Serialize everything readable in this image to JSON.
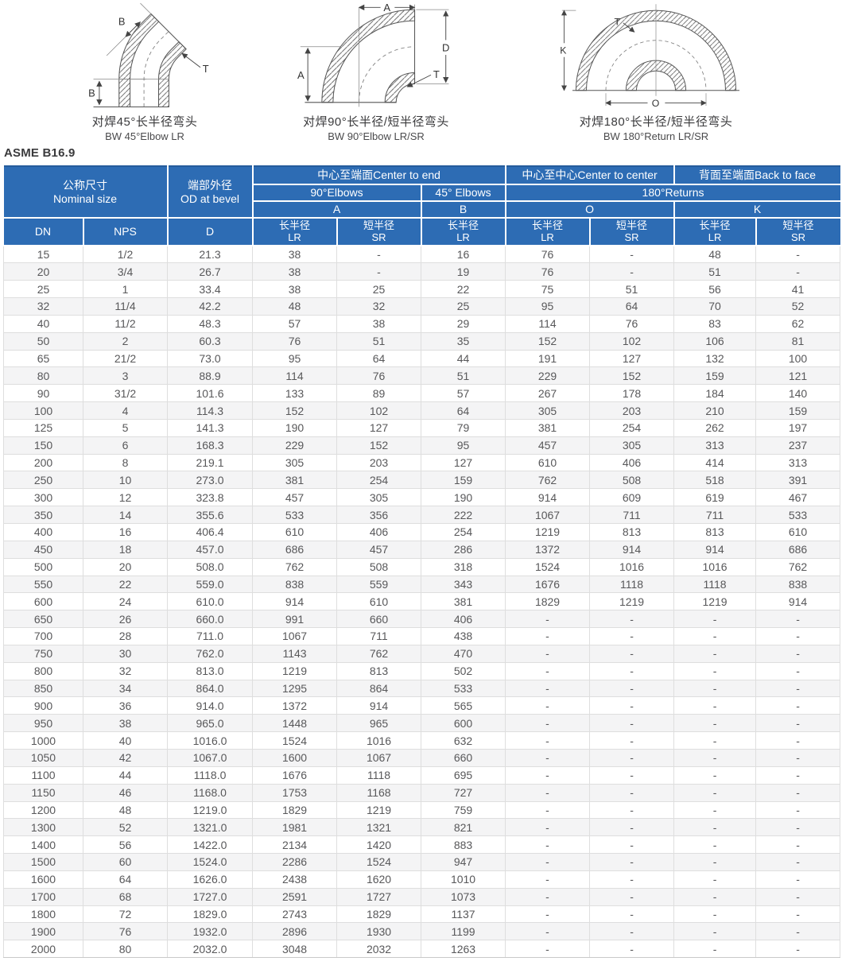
{
  "page": {
    "standard_label": "ASME B16.9"
  },
  "colors": {
    "header_blue": "#2d6cb4",
    "header_blue_dark": "#255c9c",
    "row_alt": "#f4f4f5",
    "grid_line": "#dedede",
    "cell_text": "#58585a"
  },
  "diagrams": [
    {
      "caption_cn": "对焊45°长半径弯头",
      "caption_en": "BW 45°Elbow LR",
      "labels": {
        "b_axial": "B",
        "b_vertical": "B",
        "t": "T"
      }
    },
    {
      "caption_cn": "对焊90°长半径/短半径弯头",
      "caption_en": "BW 90°Elbow LR/SR",
      "labels": {
        "a_top": "A",
        "a_left": "A",
        "d": "D",
        "t": "T"
      }
    },
    {
      "caption_cn": "对焊180°长半径/短半径弯头",
      "caption_en": "BW 180°Return LR/SR",
      "labels": {
        "k": "K",
        "t": "T",
        "o": "O"
      }
    }
  ],
  "table": {
    "header": {
      "nominal_size_cn": "公称尺寸",
      "nominal_size_en": "Nominal size",
      "od_cn": "端部外径",
      "od_en": "OD at bevel",
      "center_to_end": "中心至端面Center to end",
      "center_to_center": "中心至中心Center to center",
      "back_to_face": "背面至端面Back to face",
      "elbows_90": "90°Elbows",
      "elbows_45": "45° Elbows",
      "returns_180": "180°Returns",
      "col_a": "A",
      "col_b": "B",
      "col_o": "O",
      "col_k": "K",
      "dn": "DN",
      "nps": "NPS",
      "d": "D",
      "lr_cn": "长半径",
      "lr_en": "LR",
      "sr_cn": "短半径",
      "sr_en": "SR"
    },
    "rows": [
      [
        "15",
        "1/2",
        "21.3",
        "38",
        "-",
        "16",
        "76",
        "-",
        "48",
        "-"
      ],
      [
        "20",
        "3/4",
        "26.7",
        "38",
        "-",
        "19",
        "76",
        "-",
        "51",
        "-"
      ],
      [
        "25",
        "1",
        "33.4",
        "38",
        "25",
        "22",
        "75",
        "51",
        "56",
        "41"
      ],
      [
        "32",
        "11/4",
        "42.2",
        "48",
        "32",
        "25",
        "95",
        "64",
        "70",
        "52"
      ],
      [
        "40",
        "11/2",
        "48.3",
        "57",
        "38",
        "29",
        "114",
        "76",
        "83",
        "62"
      ],
      [
        "50",
        "2",
        "60.3",
        "76",
        "51",
        "35",
        "152",
        "102",
        "106",
        "81"
      ],
      [
        "65",
        "21/2",
        "73.0",
        "95",
        "64",
        "44",
        "191",
        "127",
        "132",
        "100"
      ],
      [
        "80",
        "3",
        "88.9",
        "114",
        "76",
        "51",
        "229",
        "152",
        "159",
        "121"
      ],
      [
        "90",
        "31/2",
        "101.6",
        "133",
        "89",
        "57",
        "267",
        "178",
        "184",
        "140"
      ],
      [
        "100",
        "4",
        "114.3",
        "152",
        "102",
        "64",
        "305",
        "203",
        "210",
        "159"
      ],
      [
        "125",
        "5",
        "141.3",
        "190",
        "127",
        "79",
        "381",
        "254",
        "262",
        "197"
      ],
      [
        "150",
        "6",
        "168.3",
        "229",
        "152",
        "95",
        "457",
        "305",
        "313",
        "237"
      ],
      [
        "200",
        "8",
        "219.1",
        "305",
        "203",
        "127",
        "610",
        "406",
        "414",
        "313"
      ],
      [
        "250",
        "10",
        "273.0",
        "381",
        "254",
        "159",
        "762",
        "508",
        "518",
        "391"
      ],
      [
        "300",
        "12",
        "323.8",
        "457",
        "305",
        "190",
        "914",
        "609",
        "619",
        "467"
      ],
      [
        "350",
        "14",
        "355.6",
        "533",
        "356",
        "222",
        "1067",
        "711",
        "711",
        "533"
      ],
      [
        "400",
        "16",
        "406.4",
        "610",
        "406",
        "254",
        "1219",
        "813",
        "813",
        "610"
      ],
      [
        "450",
        "18",
        "457.0",
        "686",
        "457",
        "286",
        "1372",
        "914",
        "914",
        "686"
      ],
      [
        "500",
        "20",
        "508.0",
        "762",
        "508",
        "318",
        "1524",
        "1016",
        "1016",
        "762"
      ],
      [
        "550",
        "22",
        "559.0",
        "838",
        "559",
        "343",
        "1676",
        "1118",
        "1118",
        "838"
      ],
      [
        "600",
        "24",
        "610.0",
        "914",
        "610",
        "381",
        "1829",
        "1219",
        "1219",
        "914"
      ],
      [
        "650",
        "26",
        "660.0",
        "991",
        "660",
        "406",
        "-",
        "-",
        "-",
        "-"
      ],
      [
        "700",
        "28",
        "711.0",
        "1067",
        "711",
        "438",
        "-",
        "-",
        "-",
        "-"
      ],
      [
        "750",
        "30",
        "762.0",
        "1143",
        "762",
        "470",
        "-",
        "-",
        "-",
        "-"
      ],
      [
        "800",
        "32",
        "813.0",
        "1219",
        "813",
        "502",
        "-",
        "-",
        "-",
        "-"
      ],
      [
        "850",
        "34",
        "864.0",
        "1295",
        "864",
        "533",
        "-",
        "-",
        "-",
        "-"
      ],
      [
        "900",
        "36",
        "914.0",
        "1372",
        "914",
        "565",
        "-",
        "-",
        "-",
        "-"
      ],
      [
        "950",
        "38",
        "965.0",
        "1448",
        "965",
        "600",
        "-",
        "-",
        "-",
        "-"
      ],
      [
        "1000",
        "40",
        "1016.0",
        "1524",
        "1016",
        "632",
        "-",
        "-",
        "-",
        "-"
      ],
      [
        "1050",
        "42",
        "1067.0",
        "1600",
        "1067",
        "660",
        "-",
        "-",
        "-",
        "-"
      ],
      [
        "1100",
        "44",
        "1118.0",
        "1676",
        "1118",
        "695",
        "-",
        "-",
        "-",
        "-"
      ],
      [
        "1150",
        "46",
        "1168.0",
        "1753",
        "1168",
        "727",
        "-",
        "-",
        "-",
        "-"
      ],
      [
        "1200",
        "48",
        "1219.0",
        "1829",
        "1219",
        "759",
        "-",
        "-",
        "-",
        "-"
      ],
      [
        "1300",
        "52",
        "1321.0",
        "1981",
        "1321",
        "821",
        "-",
        "-",
        "-",
        "-"
      ],
      [
        "1400",
        "56",
        "1422.0",
        "2134",
        "1420",
        "883",
        "-",
        "-",
        "-",
        "-"
      ],
      [
        "1500",
        "60",
        "1524.0",
        "2286",
        "1524",
        "947",
        "-",
        "-",
        "-",
        "-"
      ],
      [
        "1600",
        "64",
        "1626.0",
        "2438",
        "1620",
        "1010",
        "-",
        "-",
        "-",
        "-"
      ],
      [
        "1700",
        "68",
        "1727.0",
        "2591",
        "1727",
        "1073",
        "-",
        "-",
        "-",
        "-"
      ],
      [
        "1800",
        "72",
        "1829.0",
        "2743",
        "1829",
        "1137",
        "-",
        "-",
        "-",
        "-"
      ],
      [
        "1900",
        "76",
        "1932.0",
        "2896",
        "1930",
        "1199",
        "-",
        "-",
        "-",
        "-"
      ],
      [
        "2000",
        "80",
        "2032.0",
        "3048",
        "2032",
        "1263",
        "-",
        "-",
        "-",
        "-"
      ]
    ]
  }
}
